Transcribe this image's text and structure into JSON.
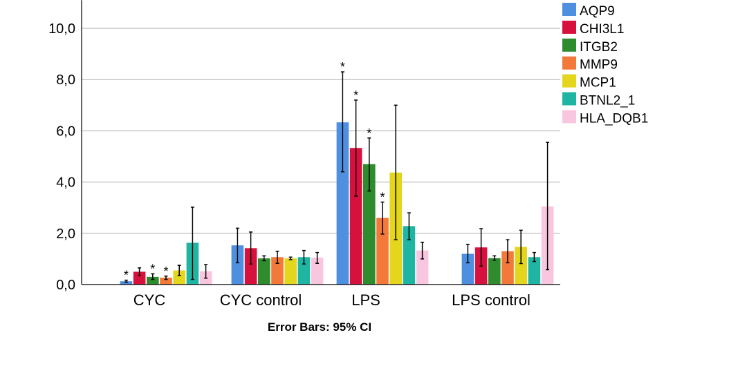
{
  "chart_data": {
    "type": "bar",
    "categories": [
      "CYC",
      "CYC control",
      "LPS",
      "LPS control"
    ],
    "series": [
      {
        "name": "AQP9",
        "color": "#4F8FE0",
        "values": [
          0.13,
          1.53,
          6.33,
          1.2
        ],
        "ci_low": [
          0.09,
          0.85,
          4.4,
          0.85
        ],
        "ci_high": [
          0.17,
          2.2,
          8.3,
          1.57
        ],
        "significant": [
          true,
          false,
          true,
          false
        ]
      },
      {
        "name": "CHI3L1",
        "color": "#D7113D",
        "values": [
          0.5,
          1.42,
          5.33,
          1.45
        ],
        "ci_low": [
          0.35,
          0.8,
          3.45,
          0.72
        ],
        "ci_high": [
          0.65,
          2.05,
          7.2,
          2.18
        ],
        "significant": [
          false,
          false,
          true,
          false
        ]
      },
      {
        "name": "ITGB2",
        "color": "#2E8B2E",
        "values": [
          0.3,
          1.02,
          4.7,
          1.03
        ],
        "ci_low": [
          0.2,
          0.93,
          3.65,
          0.95
        ],
        "ci_high": [
          0.42,
          1.12,
          5.72,
          1.12
        ],
        "significant": [
          true,
          false,
          true,
          false
        ]
      },
      {
        "name": "MMP9",
        "color": "#F2793A",
        "values": [
          0.27,
          1.07,
          2.6,
          1.3
        ],
        "ci_low": [
          0.2,
          0.83,
          1.97,
          0.85
        ],
        "ci_high": [
          0.33,
          1.3,
          3.22,
          1.75
        ],
        "significant": [
          true,
          false,
          true,
          false
        ]
      },
      {
        "name": "MCP1",
        "color": "#E3D61C",
        "values": [
          0.55,
          1.02,
          4.37,
          1.47
        ],
        "ci_low": [
          0.35,
          0.97,
          1.75,
          0.82
        ],
        "ci_high": [
          0.75,
          1.07,
          7.0,
          2.12
        ],
        "significant": [
          false,
          false,
          false,
          false
        ]
      },
      {
        "name": "BTNL2_1",
        "color": "#1FB5A2",
        "values": [
          1.63,
          1.07,
          2.28,
          1.07
        ],
        "ci_low": [
          0.2,
          0.8,
          1.75,
          0.9
        ],
        "ci_high": [
          3.02,
          1.33,
          2.8,
          1.25
        ],
        "significant": [
          false,
          false,
          false,
          false
        ]
      },
      {
        "name": "HLA_DQB1",
        "color": "#F9C6DF",
        "values": [
          0.52,
          1.05,
          1.33,
          3.05
        ],
        "ci_low": [
          0.25,
          0.83,
          1.0,
          0.58
        ],
        "ci_high": [
          0.78,
          1.25,
          1.65,
          5.55
        ],
        "significant": [
          false,
          false,
          false,
          false
        ]
      }
    ],
    "yticks": [
      "0,0",
      "2,0",
      "4,0",
      "6,0",
      "8,0",
      "10,0"
    ],
    "ylim": [
      0,
      11.1
    ],
    "grid": true,
    "legend_position": "top-right",
    "significance_marker": "*",
    "footnote": "Error Bars: 95% CI"
  }
}
